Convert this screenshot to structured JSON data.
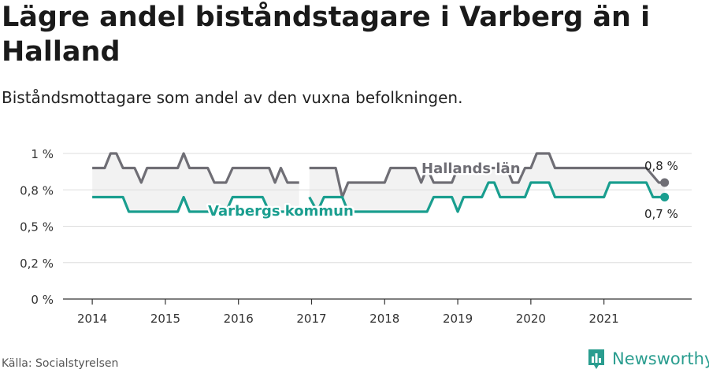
{
  "title": "Lägre andel biståndstagare i Varberg än i Halland",
  "subtitle": "Biståndsmottagare som andel av den vuxna befolkningen.",
  "source": "Källa: Socialstyrelsen",
  "brand": "Newsworthy",
  "colors": {
    "halland": "#6f6e75",
    "varberg": "#1a9e8f",
    "band": "#f2f2f2",
    "grid": "#dddddd",
    "axis": "#333333"
  },
  "chart_data": {
    "type": "line",
    "y_ticks": [
      0,
      0.25,
      0.5,
      0.75,
      1.0
    ],
    "y_tick_labels": [
      "0 %",
      "0,2 %",
      "0,5 %",
      "0,8 %",
      "1 %"
    ],
    "ylim": [
      0,
      1.0
    ],
    "x_ticks": [
      2014,
      2015,
      2016,
      2017,
      2018,
      2019,
      2020,
      2021
    ],
    "x_tick_labels": [
      "2014",
      "2015",
      "2016",
      "2017",
      "2018",
      "2019",
      "2020",
      "2021"
    ],
    "xlim": [
      2013.6,
      2022.2
    ],
    "series": [
      {
        "name": "Hallands län",
        "end_label": "0,8 %",
        "color": "#6f6e75",
        "points": [
          [
            2014.0,
            0.9
          ],
          [
            2014.17,
            0.9
          ],
          [
            2014.25,
            1.0
          ],
          [
            2014.33,
            1.0
          ],
          [
            2014.42,
            0.9
          ],
          [
            2014.58,
            0.9
          ],
          [
            2014.67,
            0.8
          ],
          [
            2014.75,
            0.9
          ],
          [
            2015.17,
            0.9
          ],
          [
            2015.25,
            1.0
          ],
          [
            2015.33,
            0.9
          ],
          [
            2015.58,
            0.9
          ],
          [
            2015.67,
            0.8
          ],
          [
            2015.83,
            0.8
          ],
          [
            2015.92,
            0.9
          ],
          [
            2016.42,
            0.9
          ],
          [
            2016.5,
            0.8
          ],
          [
            2016.58,
            0.9
          ],
          [
            2016.67,
            0.8
          ],
          [
            2016.83,
            0.8
          ],
          null,
          [
            2016.97,
            0.9
          ],
          [
            2017.33,
            0.9
          ],
          [
            2017.42,
            0.7
          ],
          [
            2017.5,
            0.8
          ],
          [
            2018.0,
            0.8
          ],
          [
            2018.08,
            0.9
          ],
          [
            2018.42,
            0.9
          ],
          [
            2018.5,
            0.8
          ],
          [
            2018.58,
            0.9
          ],
          [
            2018.67,
            0.8
          ],
          [
            2018.92,
            0.8
          ],
          [
            2019.0,
            0.9
          ],
          [
            2019.67,
            0.9
          ],
          [
            2019.75,
            0.8
          ],
          [
            2019.83,
            0.8
          ],
          [
            2019.92,
            0.9
          ],
          [
            2020.0,
            0.9
          ],
          [
            2020.08,
            1.0
          ],
          [
            2020.25,
            1.0
          ],
          [
            2020.33,
            0.9
          ],
          [
            2021.58,
            0.9
          ],
          [
            2021.75,
            0.8
          ],
          [
            2021.83,
            0.8
          ]
        ]
      },
      {
        "name": "Varbergs kommun",
        "end_label": "0,7 %",
        "color": "#1a9e8f",
        "points": [
          [
            2014.0,
            0.7
          ],
          [
            2014.42,
            0.7
          ],
          [
            2014.5,
            0.6
          ],
          [
            2015.17,
            0.6
          ],
          [
            2015.25,
            0.7
          ],
          [
            2015.33,
            0.6
          ],
          [
            2015.83,
            0.6
          ],
          [
            2015.92,
            0.7
          ],
          [
            2016.33,
            0.7
          ],
          [
            2016.42,
            0.6
          ],
          [
            2016.83,
            0.6
          ],
          null,
          [
            2016.97,
            0.7
          ],
          [
            2017.08,
            0.6
          ],
          [
            2017.17,
            0.7
          ],
          [
            2017.42,
            0.7
          ],
          [
            2017.5,
            0.6
          ],
          [
            2018.58,
            0.6
          ],
          [
            2018.67,
            0.7
          ],
          [
            2018.92,
            0.7
          ],
          [
            2019.0,
            0.6
          ],
          [
            2019.08,
            0.7
          ],
          [
            2019.33,
            0.7
          ],
          [
            2019.42,
            0.8
          ],
          [
            2019.5,
            0.8
          ],
          [
            2019.58,
            0.7
          ],
          [
            2019.92,
            0.7
          ],
          [
            2020.0,
            0.8
          ],
          [
            2020.25,
            0.8
          ],
          [
            2020.33,
            0.7
          ],
          [
            2021.0,
            0.7
          ],
          [
            2021.08,
            0.8
          ],
          [
            2021.58,
            0.8
          ],
          [
            2021.67,
            0.7
          ],
          [
            2021.83,
            0.7
          ]
        ]
      }
    ],
    "grid": true
  }
}
